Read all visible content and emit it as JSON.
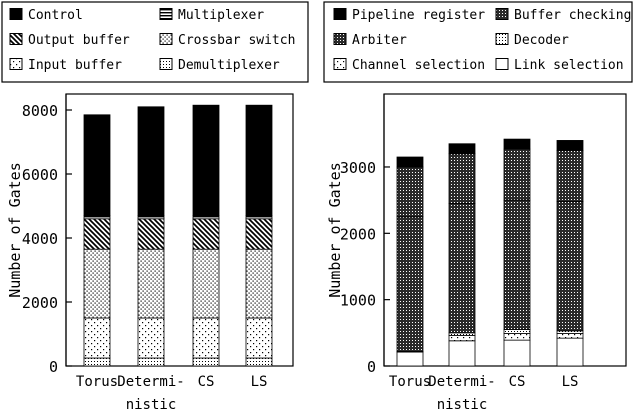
{
  "chart_data": [
    {
      "type": "bar",
      "stacked": true,
      "ylabel": "Number of Gates",
      "ylim": [
        0,
        8500
      ],
      "yticks": [
        0,
        2000,
        4000,
        6000,
        8000
      ],
      "categories": [
        [
          "Torus"
        ],
        [
          "Determi-",
          "nistic"
        ],
        [
          "CS"
        ],
        [
          "LS"
        ]
      ],
      "legend_position": "top",
      "legend_columns": [
        [
          "Control",
          "Output buffer",
          "Input buffer"
        ],
        [
          "Multiplexer",
          "Crossbar switch",
          "Demultiplexer"
        ]
      ],
      "series": [
        {
          "name": "Demultiplexer",
          "pattern": "fine-dots",
          "values": [
            250,
            250,
            250,
            250
          ]
        },
        {
          "name": "Input buffer",
          "pattern": "sparse-dots",
          "values": [
            1250,
            1250,
            1250,
            1250
          ]
        },
        {
          "name": "Crossbar switch",
          "pattern": "medium-dots",
          "values": [
            2150,
            2150,
            2150,
            2150
          ]
        },
        {
          "name": "Output buffer",
          "pattern": "diagonal-hatch",
          "values": [
            950,
            950,
            950,
            950
          ]
        },
        {
          "name": "Multiplexer",
          "pattern": "horizontal-lines",
          "values": [
            100,
            100,
            100,
            100
          ]
        },
        {
          "name": "Control",
          "pattern": "solid-black",
          "values": [
            3150,
            3400,
            3450,
            3450
          ]
        }
      ]
    },
    {
      "type": "bar",
      "stacked": true,
      "ylabel": "Number of Gates",
      "ylim": [
        0,
        4100
      ],
      "yticks": [
        0,
        1000,
        2000,
        3000
      ],
      "categories": [
        [
          "Torus"
        ],
        [
          "Determi-",
          "nistic"
        ],
        [
          "CS"
        ],
        [
          "LS"
        ]
      ],
      "legend_position": "top",
      "legend_columns": [
        [
          "Pipeline register",
          "Arbiter",
          "Channel selection"
        ],
        [
          "Buffer checking",
          "Decoder",
          "Link selection"
        ]
      ],
      "series": [
        {
          "name": "Link selection",
          "pattern": "white",
          "values": [
            210,
            380,
            390,
            420
          ]
        },
        {
          "name": "Channel selection",
          "pattern": "sparse-dots",
          "values": [
            0,
            80,
            100,
            70
          ]
        },
        {
          "name": "Decoder",
          "pattern": "fine-dots",
          "values": [
            10,
            40,
            60,
            40
          ]
        },
        {
          "name": "Arbiter",
          "pattern": "dark-dots",
          "values": [
            2030,
            1950,
            1950,
            1950
          ]
        },
        {
          "name": "Buffer checking",
          "pattern": "dark-dots",
          "values": [
            750,
            750,
            770,
            770
          ]
        },
        {
          "name": "Pipeline register",
          "pattern": "solid-black",
          "values": [
            150,
            150,
            150,
            150
          ]
        }
      ]
    }
  ]
}
